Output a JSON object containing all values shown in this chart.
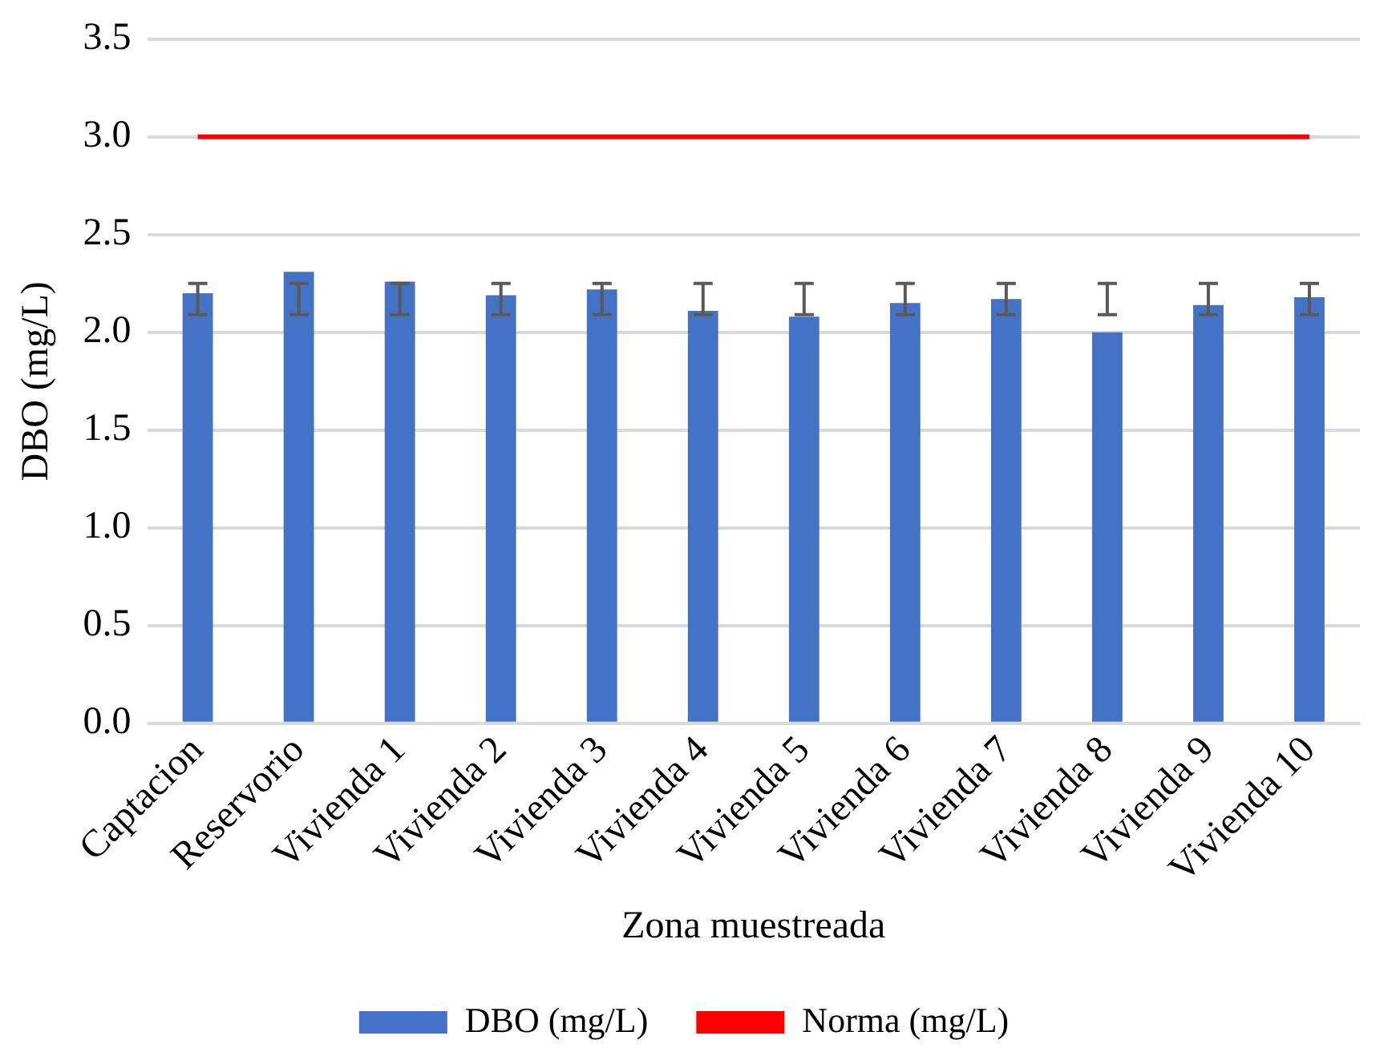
{
  "chart_data": {
    "type": "bar",
    "xlabel": "Zona muestreada",
    "ylabel": "DBO (mg/L)",
    "categories": [
      "Captacion",
      "Reservorio",
      "Vivienda 1",
      "Vivienda 2",
      "Vivienda 3",
      "Vivienda 4",
      "Vivienda 5",
      "Vivienda 6",
      "Vivienda 7",
      "Vivienda 8",
      "Vivienda 9",
      "Vivienda 10"
    ],
    "series": [
      {
        "name": "DBO (mg/L)",
        "color": "#4472c4",
        "values": [
          2.2,
          2.31,
          2.26,
          2.19,
          2.22,
          2.11,
          2.08,
          2.15,
          2.17,
          2.0,
          2.14,
          2.18
        ],
        "errors": [
          [
            2.09,
            2.25
          ],
          [
            2.09,
            2.25
          ],
          [
            2.09,
            2.25
          ],
          [
            2.09,
            2.25
          ],
          [
            2.09,
            2.25
          ],
          [
            2.09,
            2.25
          ],
          [
            2.09,
            2.25
          ],
          [
            2.09,
            2.25
          ],
          [
            2.09,
            2.25
          ],
          [
            2.09,
            2.25
          ],
          [
            2.09,
            2.25
          ],
          [
            2.09,
            2.25
          ]
        ]
      },
      {
        "name": "Norma (mg/L)",
        "type": "line",
        "color": "#ff0000",
        "values": [
          3.0,
          3.0,
          3.0,
          3.0,
          3.0,
          3.0,
          3.0,
          3.0,
          3.0,
          3.0,
          3.0,
          3.0
        ]
      }
    ],
    "ylim": [
      0,
      3.5
    ],
    "yticks": [
      {
        "value": 0,
        "label": "0.0"
      },
      {
        "value": 0.5,
        "label": "0.5"
      },
      {
        "value": 1,
        "label": "1.0"
      },
      {
        "value": 1.5,
        "label": "1.5"
      },
      {
        "value": 2,
        "label": "2.0"
      },
      {
        "value": 2.5,
        "label": "2.5"
      },
      {
        "value": 3,
        "label": "3.0"
      },
      {
        "value": 3.5,
        "label": "3.5"
      }
    ],
    "grid": "y",
    "legend": "bottom",
    "marker": "none",
    "line_style": "solid"
  }
}
